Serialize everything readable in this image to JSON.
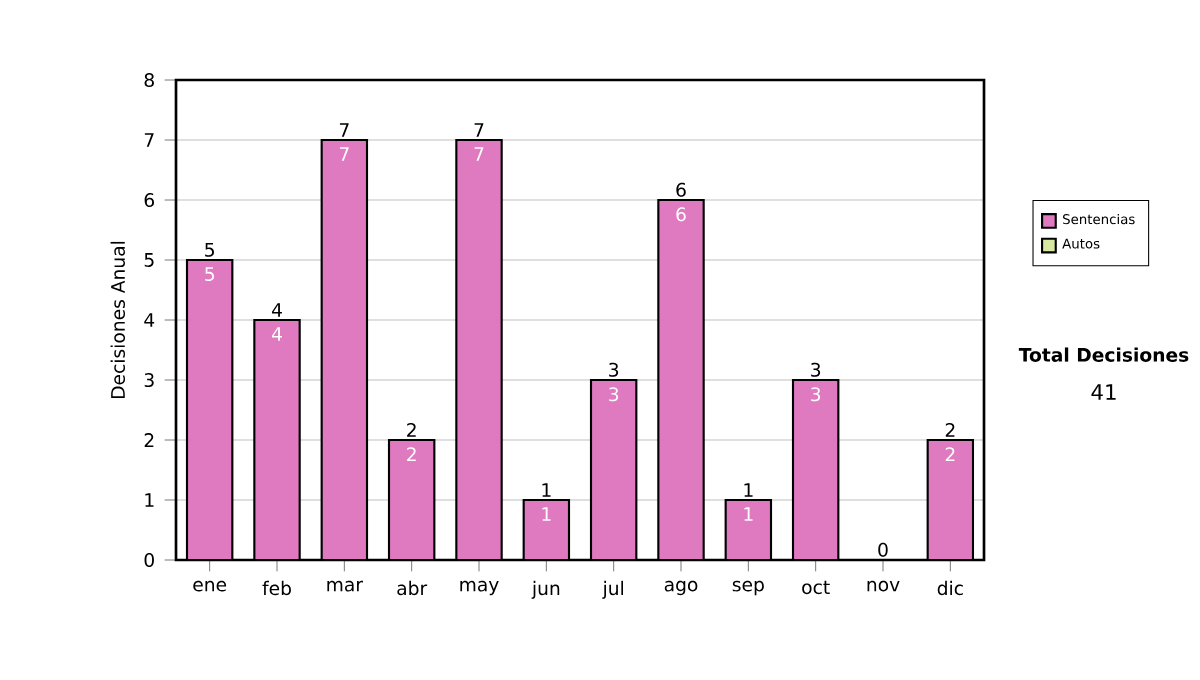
{
  "chart_data": {
    "type": "bar",
    "ylabel": "Decisiones Anual",
    "categories": [
      "ene",
      "feb",
      "mar",
      "abr",
      "may",
      "jun",
      "jul",
      "ago",
      "sep",
      "oct",
      "nov",
      "dic"
    ],
    "stacked": true,
    "series": [
      {
        "name": "Sentencias",
        "color": "#e07ac0",
        "values": [
          5,
          4,
          7,
          2,
          7,
          1,
          3,
          6,
          1,
          3,
          0,
          2
        ],
        "value_labels": [
          "5",
          "4",
          "7",
          "2",
          "7",
          "1",
          "3",
          "6",
          "1",
          "3",
          null,
          "2"
        ]
      },
      {
        "name": "Autos",
        "color": "#d8e8a0",
        "values": [
          0,
          0,
          0,
          0,
          0,
          0,
          0,
          0,
          0,
          0,
          0,
          0
        ]
      }
    ],
    "totals": [
      "5",
      "4",
      "7",
      "2",
      "7",
      "1",
      "3",
      "6",
      "1",
      "3",
      "0",
      "2"
    ],
    "ylim": [
      0,
      8
    ],
    "yticks": [
      0,
      1,
      2,
      3,
      4,
      5,
      6,
      7,
      8
    ],
    "grid": "y",
    "legend": "right",
    "annotations": [
      "Total Decisiones",
      "41"
    ]
  }
}
